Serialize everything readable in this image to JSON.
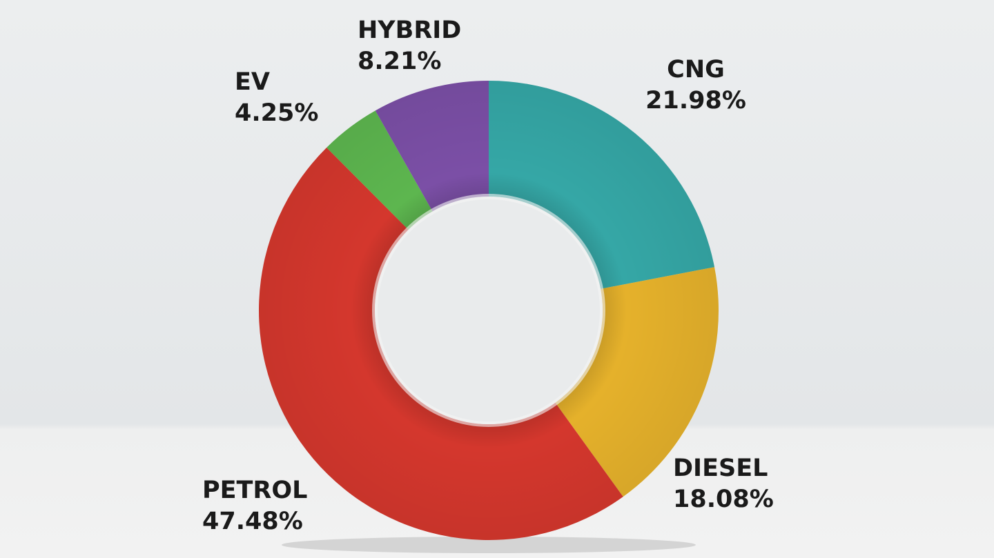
{
  "chart_data": {
    "type": "donut",
    "categories": [
      "CNG",
      "DIESEL",
      "PETROL",
      "EV",
      "HYBRID"
    ],
    "values": [
      21.98,
      18.08,
      47.48,
      4.25,
      8.21
    ],
    "value_labels": [
      "21.98%",
      "18.08%",
      "47.48%",
      "4.25%",
      "8.21%"
    ],
    "colors": [
      "#35a7a6",
      "#e5b12b",
      "#d4372d",
      "#5db64f",
      "#7b4fa6"
    ]
  }
}
